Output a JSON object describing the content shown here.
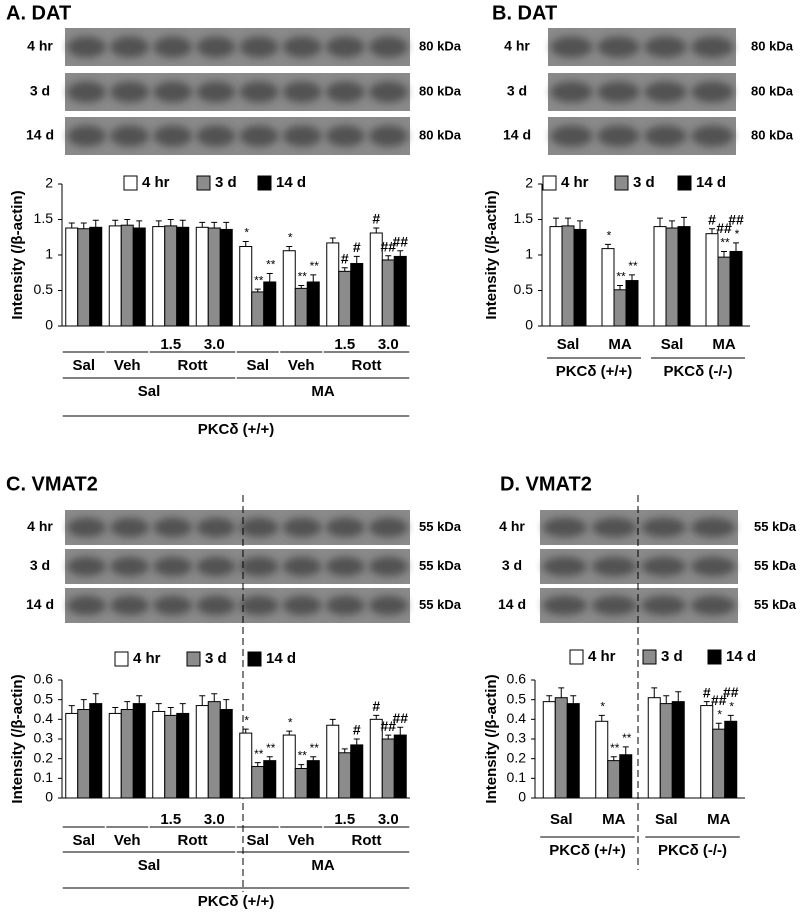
{
  "chart_data": [
    {
      "type": "bar",
      "title": "A. DAT",
      "blot_rows": [
        {
          "label": "4 hr",
          "size": "80 kDa"
        },
        {
          "label": "3 d",
          "size": "80 kDa"
        },
        {
          "label": "14 d",
          "size": "80 kDa"
        }
      ],
      "y_label": "Intensity (/β-actin)",
      "categories": [
        "Sal",
        "Veh",
        "1.5",
        "3.0",
        "Sal",
        "Veh",
        "1.5",
        "3.0"
      ],
      "group_levels": [
        [
          {
            "label": "Rott",
            "span": [
              2,
              3
            ]
          },
          {
            "label": "Rott",
            "span": [
              6,
              7
            ]
          }
        ],
        [
          {
            "label": "Sal",
            "span": [
              0,
              3
            ]
          },
          {
            "label": "MA",
            "span": [
              4,
              7
            ]
          }
        ],
        [
          {
            "label": "PKCδ (+/+)",
            "span": [
              0,
              7
            ]
          }
        ]
      ],
      "ylim": [
        0,
        2
      ],
      "yticks": [
        0,
        0.5,
        1,
        1.5,
        2
      ],
      "series": [
        {
          "name": "4 hr",
          "color": "#ffffff",
          "values": [
            1.38,
            1.41,
            1.4,
            1.39,
            1.12,
            1.06,
            1.17,
            1.31
          ],
          "errors": [
            0.07,
            0.08,
            0.08,
            0.07,
            0.07,
            0.06,
            0.07,
            0.07
          ],
          "markers": [
            null,
            null,
            null,
            null,
            [
              "*"
            ],
            [
              "*"
            ],
            null,
            [
              "#"
            ]
          ]
        },
        {
          "name": "3 d",
          "color": "#8c8c8c",
          "values": [
            1.37,
            1.42,
            1.41,
            1.38,
            0.48,
            0.53,
            0.77,
            0.93
          ],
          "errors": [
            0.08,
            0.08,
            0.09,
            0.08,
            0.04,
            0.04,
            0.05,
            0.06
          ],
          "markers": [
            null,
            null,
            null,
            null,
            [
              "**"
            ],
            [
              "**"
            ],
            [
              "#"
            ],
            [
              "##"
            ]
          ]
        },
        {
          "name": "14 d",
          "color": "#000000",
          "values": [
            1.39,
            1.38,
            1.39,
            1.36,
            0.62,
            0.62,
            0.88,
            0.98
          ],
          "errors": [
            0.1,
            0.1,
            0.1,
            0.1,
            0.12,
            0.1,
            0.1,
            0.08
          ],
          "markers": [
            null,
            null,
            null,
            null,
            [
              "**"
            ],
            [
              "**"
            ],
            [
              "#"
            ],
            [
              "##"
            ]
          ]
        }
      ]
    },
    {
      "type": "bar",
      "title": "B. DAT",
      "blot_rows": [
        {
          "label": "4 hr",
          "size": "80 kDa"
        },
        {
          "label": "3 d",
          "size": "80 kDa"
        },
        {
          "label": "14 d",
          "size": "80 kDa"
        }
      ],
      "y_label": "Intensity (/β-actin)",
      "categories": [
        "Sal",
        "MA",
        "Sal",
        "MA"
      ],
      "group_levels": [
        [
          {
            "label": "PKCδ (+/+)",
            "span": [
              0,
              1
            ]
          },
          {
            "label": "PKCδ (-/-)",
            "span": [
              2,
              3
            ]
          }
        ]
      ],
      "ylim": [
        0,
        2
      ],
      "yticks": [
        0,
        0.5,
        1,
        1.5,
        2
      ],
      "series": [
        {
          "name": "4 hr",
          "color": "#ffffff",
          "values": [
            1.4,
            1.09,
            1.4,
            1.3
          ],
          "errors": [
            0.12,
            0.06,
            0.12,
            0.07
          ],
          "markers": [
            null,
            [
              "*"
            ],
            null,
            [
              "#"
            ]
          ]
        },
        {
          "name": "3 d",
          "color": "#8c8c8c",
          "values": [
            1.41,
            0.51,
            1.38,
            0.97
          ],
          "errors": [
            0.11,
            0.06,
            0.1,
            0.08
          ],
          "markers": [
            null,
            [
              "**"
            ],
            null,
            [
              "##",
              "**"
            ]
          ]
        },
        {
          "name": "14 d",
          "color": "#000000",
          "values": [
            1.36,
            0.64,
            1.4,
            1.05
          ],
          "errors": [
            0.12,
            0.08,
            0.13,
            0.12
          ],
          "markers": [
            null,
            [
              "**"
            ],
            null,
            [
              "##",
              "*"
            ]
          ]
        }
      ]
    },
    {
      "type": "bar",
      "title": "C. VMAT2",
      "blot_rows": [
        {
          "label": "4 hr",
          "size": "55 kDa"
        },
        {
          "label": "3 d",
          "size": "55 kDa"
        },
        {
          "label": "14 d",
          "size": "55 kDa"
        }
      ],
      "y_label": "Intensity (/β-actin)",
      "categories": [
        "Sal",
        "Veh",
        "1.5",
        "3.0",
        "Sal",
        "Veh",
        "1.5",
        "3.0"
      ],
      "group_levels": [
        [
          {
            "label": "Rott",
            "span": [
              2,
              3
            ]
          },
          {
            "label": "Rott",
            "span": [
              6,
              7
            ]
          }
        ],
        [
          {
            "label": "Sal",
            "span": [
              0,
              3
            ]
          },
          {
            "label": "MA",
            "span": [
              4,
              7
            ]
          }
        ],
        [
          {
            "label": "PKCδ (+/+)",
            "span": [
              0,
              7
            ]
          }
        ]
      ],
      "ylim": [
        0,
        0.6
      ],
      "yticks": [
        0,
        0.1,
        0.2,
        0.3,
        0.4,
        0.5,
        0.6
      ],
      "series": [
        {
          "name": "4 hr",
          "color": "#ffffff",
          "values": [
            0.43,
            0.43,
            0.44,
            0.47,
            0.33,
            0.32,
            0.37,
            0.4
          ],
          "errors": [
            0.04,
            0.03,
            0.04,
            0.05,
            0.02,
            0.02,
            0.03,
            0.02
          ],
          "markers": [
            null,
            null,
            null,
            null,
            [
              "*"
            ],
            [
              "*"
            ],
            null,
            [
              "#"
            ]
          ]
        },
        {
          "name": "3 d",
          "color": "#8c8c8c",
          "values": [
            0.45,
            0.45,
            0.42,
            0.49,
            0.16,
            0.15,
            0.23,
            0.3
          ],
          "errors": [
            0.05,
            0.04,
            0.04,
            0.04,
            0.02,
            0.02,
            0.02,
            0.02
          ],
          "markers": [
            null,
            null,
            null,
            null,
            [
              "**"
            ],
            [
              "**"
            ],
            null,
            [
              "##"
            ]
          ]
        },
        {
          "name": "14 d",
          "color": "#000000",
          "values": [
            0.48,
            0.48,
            0.43,
            0.45,
            0.19,
            0.19,
            0.27,
            0.32
          ],
          "errors": [
            0.05,
            0.04,
            0.05,
            0.05,
            0.02,
            0.02,
            0.03,
            0.04
          ],
          "markers": [
            null,
            null,
            null,
            null,
            [
              "**"
            ],
            [
              "**"
            ],
            [
              "#"
            ],
            [
              "##"
            ]
          ]
        }
      ]
    },
    {
      "type": "bar",
      "title": "D. VMAT2",
      "blot_rows": [
        {
          "label": "4 hr",
          "size": "55 kDa"
        },
        {
          "label": "3 d",
          "size": "55 kDa"
        },
        {
          "label": "14 d",
          "size": "55 kDa"
        }
      ],
      "y_label": "Intensity (/β-actin)",
      "categories": [
        "Sal",
        "MA",
        "Sal",
        "MA"
      ],
      "group_levels": [
        [
          {
            "label": "PKCδ (+/+)",
            "span": [
              0,
              1
            ]
          },
          {
            "label": "PKCδ (-/-)",
            "span": [
              2,
              3
            ]
          }
        ]
      ],
      "ylim": [
        0,
        0.6
      ],
      "yticks": [
        0,
        0.1,
        0.2,
        0.3,
        0.4,
        0.5,
        0.6
      ],
      "series": [
        {
          "name": "4 hr",
          "color": "#ffffff",
          "values": [
            0.49,
            0.39,
            0.51,
            0.47
          ],
          "errors": [
            0.03,
            0.03,
            0.05,
            0.02
          ],
          "markers": [
            null,
            [
              "*"
            ],
            null,
            [
              "#"
            ]
          ]
        },
        {
          "name": "3 d",
          "color": "#8c8c8c",
          "values": [
            0.51,
            0.19,
            0.48,
            0.35
          ],
          "errors": [
            0.05,
            0.02,
            0.04,
            0.03
          ],
          "markers": [
            null,
            [
              "**"
            ],
            null,
            [
              "##",
              "*"
            ]
          ]
        },
        {
          "name": "14 d",
          "color": "#000000",
          "values": [
            0.48,
            0.22,
            0.49,
            0.39
          ],
          "errors": [
            0.04,
            0.04,
            0.05,
            0.03
          ],
          "markers": [
            null,
            [
              "**"
            ],
            null,
            [
              "##",
              "*"
            ]
          ]
        }
      ]
    }
  ]
}
